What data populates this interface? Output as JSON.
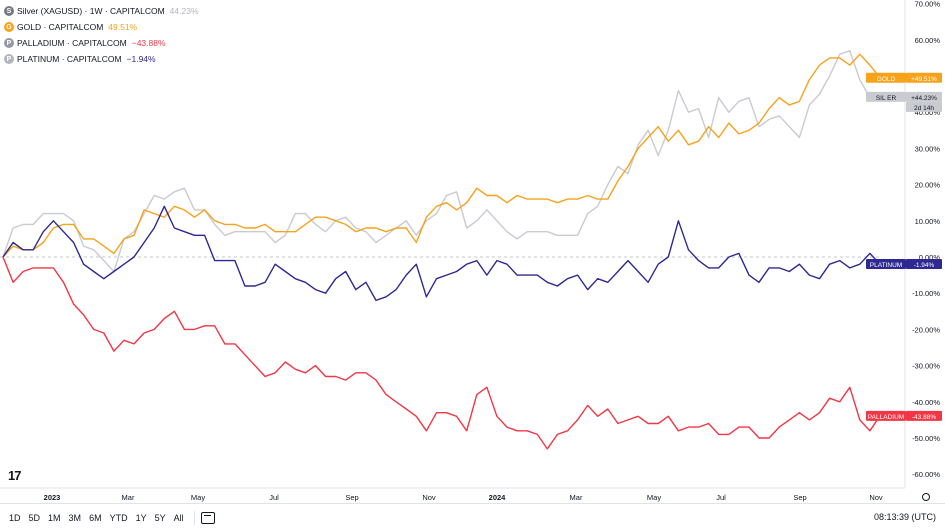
{
  "legend": [
    {
      "name": "Silver (XAGUSD) · 1W · CAPITALCOM",
      "value": "44.23%",
      "value_color": "#b2b5be",
      "icon_color": "#787b86",
      "icon_name": "silver-icon"
    },
    {
      "name": "GOLD · CAPITALCOM",
      "value": "49.51%",
      "value_color": "#f7a21b",
      "icon_color": "#f7a21b",
      "icon_name": "gold-icon"
    },
    {
      "name": "PALLADIUM · CAPITALCOM",
      "value": "−43.88%",
      "value_color": "#f23645",
      "icon_color": "#9598a1",
      "icon_name": "palladium-icon"
    },
    {
      "name": "PLATINUM · CAPITALCOM",
      "value": "−1.94%",
      "value_color": "#2e2891",
      "icon_color": "#b2b5be",
      "icon_name": "platinum-icon"
    }
  ],
  "price_labels": {
    "gold": {
      "text": "GOLD",
      "value": "+49.51%",
      "color": "#f7a21b"
    },
    "silver": {
      "text": "SIL ER",
      "value": "+44.23%",
      "countdown": "2d 14h",
      "color": "#c9cbd1"
    },
    "platinum": {
      "text": "PLATINUM",
      "value": "-1.94%",
      "color": "#2e2891"
    },
    "palladium": {
      "text": "PALLADIUM",
      "value": "-43.88%",
      "color": "#f23645"
    }
  },
  "bottom_bar": {
    "timeframes": [
      "1D",
      "5D",
      "1M",
      "3M",
      "6M",
      "YTD",
      "1Y",
      "5Y",
      "All"
    ],
    "clock": "08:13:39 (UTC)"
  },
  "logo": "17",
  "chart_data": {
    "type": "line",
    "x_axis_type": "date",
    "x_tick_labels": [
      "2023",
      "Mar",
      "May",
      "Jul",
      "Sep",
      "Nov",
      "2024",
      "Mar",
      "May",
      "Jul",
      "Sep",
      "Nov"
    ],
    "y_tick_labels": [
      "70.00%",
      "60.00%",
      "50.00%",
      "40.00%",
      "30.00%",
      "20.00%",
      "10.00%",
      "0.00%",
      "-10.00%",
      "-20.00%",
      "-30.00%",
      "-40.00%",
      "-50.00%",
      "-60.00%"
    ],
    "ylim": [
      -62,
      70
    ],
    "grid": false,
    "series": [
      {
        "name": "GOLD",
        "color": "#f7a21b",
        "values": [
          0,
          3,
          2,
          2,
          4,
          8,
          9,
          9,
          5,
          5,
          3,
          1,
          5,
          6,
          13,
          12,
          11,
          14,
          13,
          11,
          13,
          10,
          9,
          9,
          8,
          8,
          9,
          7,
          7,
          7,
          9,
          11,
          11,
          10,
          9,
          7,
          8,
          8,
          7,
          8,
          8,
          4,
          11,
          14,
          15,
          13,
          15,
          19,
          17,
          17,
          15,
          17,
          16,
          16,
          16,
          15,
          16,
          16,
          17,
          16,
          16,
          21,
          25,
          30,
          33,
          36,
          32,
          35,
          31,
          32,
          36,
          33,
          37,
          34,
          35,
          37,
          41,
          44,
          42,
          43,
          49,
          53,
          55,
          55,
          53,
          56,
          53,
          49.51
        ]
      },
      {
        "name": "Silver",
        "color": "#c9cbd1",
        "values": [
          0,
          8,
          9,
          9,
          12,
          12,
          12,
          10,
          3,
          2,
          -1,
          -4,
          5,
          7,
          12,
          17,
          16,
          18,
          19,
          13,
          13,
          9,
          6,
          7,
          7,
          7,
          7,
          4,
          6,
          12,
          12,
          9,
          7,
          10,
          11,
          8,
          7,
          4,
          6,
          8,
          10,
          6,
          10,
          12,
          17,
          18,
          8,
          10,
          13,
          10,
          7,
          5,
          7,
          7,
          7,
          6,
          6,
          6,
          12,
          14,
          20,
          25,
          23,
          31,
          35,
          28,
          35,
          46,
          40,
          41,
          33,
          44,
          40,
          43,
          44,
          36,
          38,
          39,
          36,
          33,
          42,
          45,
          50,
          56,
          57,
          49,
          44,
          44.23
        ]
      },
      {
        "name": "PLATINUM",
        "color": "#2e2891",
        "values": [
          0,
          4,
          2,
          2,
          7,
          10,
          7,
          4,
          -2,
          -4,
          -6,
          -4,
          -2,
          0,
          4,
          8,
          14,
          8,
          7,
          6,
          6,
          -1,
          -1,
          -1,
          -8,
          -8,
          -7,
          -2,
          -4,
          -6,
          -7,
          -9,
          -10,
          -6,
          -4,
          -9,
          -7,
          -12,
          -11,
          -9,
          -5,
          -2,
          -11,
          -6,
          -5,
          -4,
          -2,
          -1,
          -5,
          -1,
          -2,
          -5,
          -5,
          -5,
          -7,
          -8,
          -6,
          -5,
          -9,
          -6,
          -7,
          -4,
          -1,
          -4,
          -7,
          -2,
          0,
          10,
          2,
          -1,
          -3,
          -3,
          0,
          1,
          -5,
          -7,
          -3,
          -3,
          -4,
          -2,
          -5,
          -6,
          -2,
          -1,
          -3,
          -2,
          1,
          -1.94
        ]
      },
      {
        "name": "PALLADIUM",
        "color": "#f23645",
        "values": [
          0,
          -7,
          -4,
          -3,
          -3,
          -3,
          -7,
          -13,
          -16,
          -20,
          -21,
          -26,
          -23,
          -24,
          -21,
          -20,
          -17,
          -15,
          -20,
          -20,
          -19,
          -19,
          -24,
          -24,
          -27,
          -30,
          -33,
          -32,
          -29,
          -31,
          -32,
          -30,
          -33,
          -33,
          -34,
          -32,
          -32,
          -34,
          -38,
          -40,
          -42,
          -44,
          -48,
          -43,
          -43,
          -44,
          -48,
          -38,
          -36,
          -44,
          -47,
          -48,
          -48,
          -49,
          -53,
          -49,
          -48,
          -45,
          -41,
          -44,
          -42,
          -46,
          -45,
          -44,
          -46,
          -46,
          -44,
          -48,
          -47,
          -47,
          -46,
          -49,
          -49,
          -47,
          -47,
          -50,
          -50,
          -47,
          -45,
          -43,
          -45,
          -43,
          -39,
          -40,
          -36,
          -45,
          -48,
          -43.88
        ]
      }
    ]
  }
}
